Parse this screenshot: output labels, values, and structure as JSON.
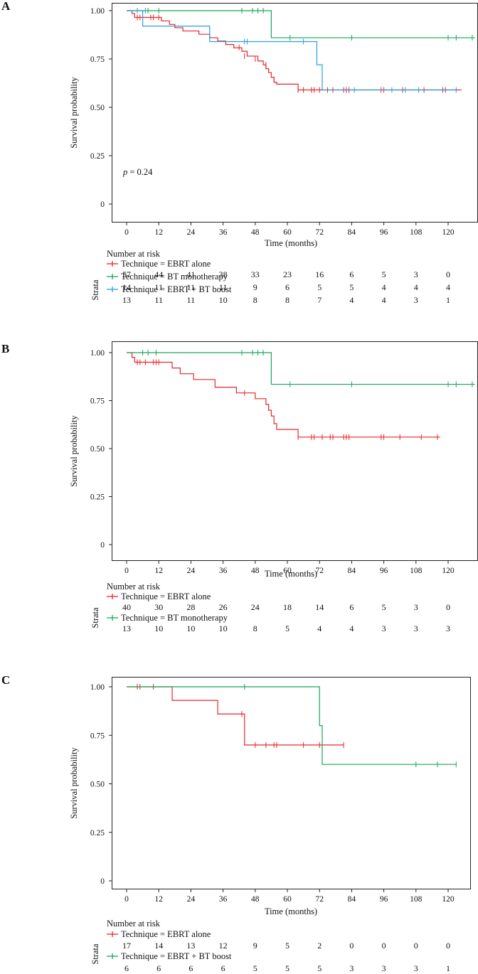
{
  "colors": {
    "ebrt_alone": "#e8262a",
    "bt_mono": "#1aa55a",
    "ebrt_bt": "#2a9fd8"
  },
  "panels": [
    {
      "letter": "A",
      "ylabel": "Survival probability",
      "xlabel": "Time (months)",
      "yticks": [
        "1.00",
        "0.75",
        "0.50",
        "0.25",
        "0"
      ],
      "xticks": [
        "0",
        "12",
        "24",
        "36",
        "48",
        "60",
        "72",
        "84",
        "96",
        "108",
        "120"
      ],
      "pvalue_p": "p",
      "pvalue_rest": " = 0.24",
      "risk_title": "Number at risk",
      "strata_label": "Strata",
      "groups": [
        {
          "label": "Technique = EBRT alone",
          "color_key": "ebrt_alone",
          "risk": [
            "57",
            "44",
            "41",
            "38",
            "33",
            "23",
            "16",
            "6",
            "5",
            "3",
            "0"
          ]
        },
        {
          "label": "Technique = BT monotherapy",
          "color_key": "bt_mono",
          "risk": [
            "14",
            "11",
            "11",
            "11",
            "9",
            "6",
            "5",
            "5",
            "4",
            "4",
            "4"
          ]
        },
        {
          "label": "Technique = EBRT + BT boost",
          "color_key": "ebrt_bt",
          "risk": [
            "13",
            "11",
            "11",
            "10",
            "8",
            "8",
            "7",
            "4",
            "4",
            "3",
            "1"
          ]
        }
      ]
    },
    {
      "letter": "B",
      "ylabel": "Survival probability",
      "xlabel": "Time (months)",
      "yticks": [
        "1.00",
        "0.75",
        "0.50",
        "0.25",
        "0"
      ],
      "xticks": [
        "0",
        "12",
        "24",
        "36",
        "48",
        "60",
        "72",
        "84",
        "96",
        "108",
        "120"
      ],
      "risk_title": "Number at risk",
      "strata_label": "Strata",
      "groups": [
        {
          "label": "Technique = EBRT alone",
          "color_key": "ebrt_alone",
          "risk": [
            "40",
            "30",
            "28",
            "26",
            "24",
            "18",
            "14",
            "6",
            "5",
            "3",
            "0"
          ]
        },
        {
          "label": "Technique = BT monotherapy",
          "color_key": "bt_mono",
          "risk": [
            "13",
            "10",
            "10",
            "10",
            "8",
            "5",
            "4",
            "4",
            "3",
            "3",
            "3"
          ]
        }
      ]
    },
    {
      "letter": "C",
      "ylabel": "Survival probability",
      "xlabel": "Time (months)",
      "yticks": [
        "1.00",
        "0.75",
        "0.50",
        "0.25",
        "0"
      ],
      "xticks": [
        "0",
        "12",
        "24",
        "36",
        "48",
        "60",
        "72",
        "84",
        "96",
        "108",
        "120"
      ],
      "risk_title": "Number at risk",
      "strata_label": "Strata",
      "groups": [
        {
          "label": "Technique = EBRT alone",
          "color_key": "ebrt_alone",
          "risk": [
            "17",
            "14",
            "13",
            "12",
            "9",
            "5",
            "2",
            "0",
            "0",
            "0",
            "0"
          ]
        },
        {
          "label": "Technique = EBRT + BT boost",
          "color_key": "bt_mono",
          "risk": [
            "6",
            "6",
            "6",
            "6",
            "5",
            "5",
            "5",
            "3",
            "3",
            "3",
            "1"
          ]
        }
      ]
    }
  ],
  "chart_data": [
    {
      "type": "line",
      "title": "A",
      "xlabel": "Time (months)",
      "ylabel": "Survival probability",
      "xlim": [
        -5,
        130
      ],
      "ylim": [
        0,
        1.0
      ],
      "series": [
        {
          "name": "Technique = EBRT alone",
          "color_key": "ebrt_alone",
          "steps": [
            [
              0,
              1.0
            ],
            [
              2,
              0.985
            ],
            [
              3,
              0.965
            ],
            [
              13,
              0.947
            ],
            [
              16,
              0.929
            ],
            [
              18,
              0.912
            ],
            [
              21,
              0.895
            ],
            [
              27,
              0.878
            ],
            [
              31,
              0.86
            ],
            [
              34,
              0.843
            ],
            [
              37,
              0.825
            ],
            [
              40,
              0.808
            ],
            [
              43,
              0.79
            ],
            [
              45,
              0.765
            ],
            [
              49,
              0.74
            ],
            [
              51,
              0.72
            ],
            [
              52,
              0.7
            ],
            [
              53,
              0.68
            ],
            [
              54,
              0.655
            ],
            [
              55,
              0.63
            ],
            [
              56,
              0.62
            ],
            [
              64,
              0.59
            ],
            [
              125,
              0.59
            ]
          ],
          "censor": [
            [
              4,
              0.965
            ],
            [
              5,
              0.965
            ],
            [
              9,
              0.965
            ],
            [
              10,
              0.965
            ],
            [
              12,
              0.965
            ],
            [
              42,
              0.81
            ],
            [
              44,
              0.765
            ],
            [
              48,
              0.75
            ],
            [
              52,
              0.72
            ],
            [
              55,
              0.645
            ],
            [
              64,
              0.59
            ],
            [
              66,
              0.59
            ],
            [
              69,
              0.59
            ],
            [
              70,
              0.59
            ],
            [
              72,
              0.59
            ],
            [
              75,
              0.59
            ],
            [
              77,
              0.59
            ],
            [
              81,
              0.59
            ],
            [
              82,
              0.59
            ],
            [
              83,
              0.59
            ],
            [
              95,
              0.59
            ],
            [
              96,
              0.59
            ],
            [
              103,
              0.59
            ],
            [
              111,
              0.59
            ],
            [
              118,
              0.59
            ],
            [
              119,
              0.59
            ]
          ]
        },
        {
          "name": "Technique = BT monotherapy",
          "color_key": "bt_mono",
          "steps": [
            [
              0,
              1.0
            ],
            [
              54,
              1.0
            ],
            [
              54,
              0.86
            ],
            [
              130,
              0.86
            ]
          ],
          "censor": [
            [
              8,
              1.0
            ],
            [
              12,
              1.0
            ],
            [
              43,
              1.0
            ],
            [
              47,
              1.0
            ],
            [
              49,
              1.0
            ],
            [
              51,
              1.0
            ],
            [
              61,
              0.86
            ],
            [
              84,
              0.86
            ],
            [
              120,
              0.86
            ],
            [
              123,
              0.86
            ],
            [
              129,
              0.86
            ]
          ]
        },
        {
          "name": "Technique = EBRT + BT boost",
          "color_key": "ebrt_bt",
          "steps": [
            [
              0,
              1.0
            ],
            [
              6,
              1.0
            ],
            [
              6,
              0.92
            ],
            [
              31,
              0.92
            ],
            [
              31,
              0.84
            ],
            [
              71,
              0.84
            ],
            [
              71,
              0.72
            ],
            [
              73,
              0.72
            ],
            [
              73,
              0.59
            ],
            [
              123,
              0.59
            ]
          ],
          "censor": [
            [
              4,
              1.0
            ],
            [
              7,
              1.0
            ],
            [
              44,
              0.84
            ],
            [
              45,
              0.84
            ],
            [
              66,
              0.84
            ],
            [
              85,
              0.59
            ],
            [
              99,
              0.59
            ],
            [
              104,
              0.59
            ],
            [
              109,
              0.59
            ],
            [
              123,
              0.59
            ]
          ]
        }
      ]
    },
    {
      "type": "line",
      "title": "B",
      "xlabel": "Time (months)",
      "ylabel": "Survival probability",
      "xlim": [
        -5,
        130
      ],
      "ylim": [
        0,
        1.0
      ],
      "series": [
        {
          "name": "Technique = EBRT alone",
          "color_key": "ebrt_alone",
          "steps": [
            [
              0,
              1.0
            ],
            [
              2,
              0.975
            ],
            [
              3,
              0.95
            ],
            [
              13,
              0.95
            ],
            [
              17,
              0.92
            ],
            [
              20,
              0.89
            ],
            [
              25,
              0.86
            ],
            [
              33,
              0.82
            ],
            [
              41,
              0.79
            ],
            [
              48,
              0.76
            ],
            [
              52,
              0.73
            ],
            [
              53,
              0.7
            ],
            [
              54,
              0.67
            ],
            [
              55,
              0.63
            ],
            [
              56,
              0.6
            ],
            [
              64,
              0.56
            ],
            [
              117,
              0.56
            ]
          ],
          "censor": [
            [
              4,
              0.95
            ],
            [
              5,
              0.95
            ],
            [
              7,
              0.95
            ],
            [
              10,
              0.95
            ],
            [
              11,
              0.95
            ],
            [
              12,
              0.95
            ],
            [
              44,
              0.79
            ],
            [
              64,
              0.56
            ],
            [
              69,
              0.56
            ],
            [
              70,
              0.56
            ],
            [
              73,
              0.56
            ],
            [
              76,
              0.56
            ],
            [
              77,
              0.56
            ],
            [
              81,
              0.56
            ],
            [
              82,
              0.56
            ],
            [
              83,
              0.56
            ],
            [
              95,
              0.56
            ],
            [
              96,
              0.56
            ],
            [
              102,
              0.56
            ],
            [
              110,
              0.56
            ],
            [
              116,
              0.56
            ]
          ]
        },
        {
          "name": "Technique = BT monotherapy",
          "color_key": "bt_mono",
          "steps": [
            [
              0,
              1.0
            ],
            [
              54,
              1.0
            ],
            [
              54,
              0.835
            ],
            [
              130,
              0.835
            ]
          ],
          "censor": [
            [
              6,
              1.0
            ],
            [
              8,
              1.0
            ],
            [
              11,
              1.0
            ],
            [
              43,
              1.0
            ],
            [
              47,
              1.0
            ],
            [
              49,
              1.0
            ],
            [
              51,
              1.0
            ],
            [
              61,
              0.835
            ],
            [
              84,
              0.835
            ],
            [
              120,
              0.835
            ],
            [
              123,
              0.835
            ],
            [
              129,
              0.835
            ]
          ]
        }
      ]
    },
    {
      "type": "line",
      "title": "C",
      "xlabel": "Time (months)",
      "ylabel": "Survival probability",
      "xlim": [
        -5,
        127
      ],
      "ylim": [
        0,
        1.0
      ],
      "series": [
        {
          "name": "Technique = EBRT alone",
          "color_key": "ebrt_alone",
          "steps": [
            [
              0,
              1.0
            ],
            [
              17,
              1.0
            ],
            [
              17,
              0.93
            ],
            [
              34,
              0.93
            ],
            [
              34,
              0.86
            ],
            [
              44,
              0.86
            ],
            [
              44,
              0.7
            ],
            [
              81,
              0.7
            ]
          ],
          "censor": [
            [
              4,
              1.0
            ],
            [
              5,
              1.0
            ],
            [
              10,
              1.0
            ],
            [
              43,
              0.86
            ],
            [
              48,
              0.7
            ],
            [
              52,
              0.7
            ],
            [
              55,
              0.7
            ],
            [
              56,
              0.7
            ],
            [
              66,
              0.7
            ],
            [
              72,
              0.7
            ],
            [
              81,
              0.7
            ]
          ]
        },
        {
          "name": "Technique = EBRT + BT boost",
          "color_key": "bt_mono",
          "steps": [
            [
              0,
              1.0
            ],
            [
              72,
              1.0
            ],
            [
              72,
              0.8
            ],
            [
              73,
              0.8
            ],
            [
              73,
              0.6
            ],
            [
              123,
              0.6
            ]
          ],
          "censor": [
            [
              44,
              1.0
            ],
            [
              108,
              0.6
            ],
            [
              116,
              0.6
            ],
            [
              123,
              0.6
            ]
          ]
        }
      ]
    }
  ]
}
